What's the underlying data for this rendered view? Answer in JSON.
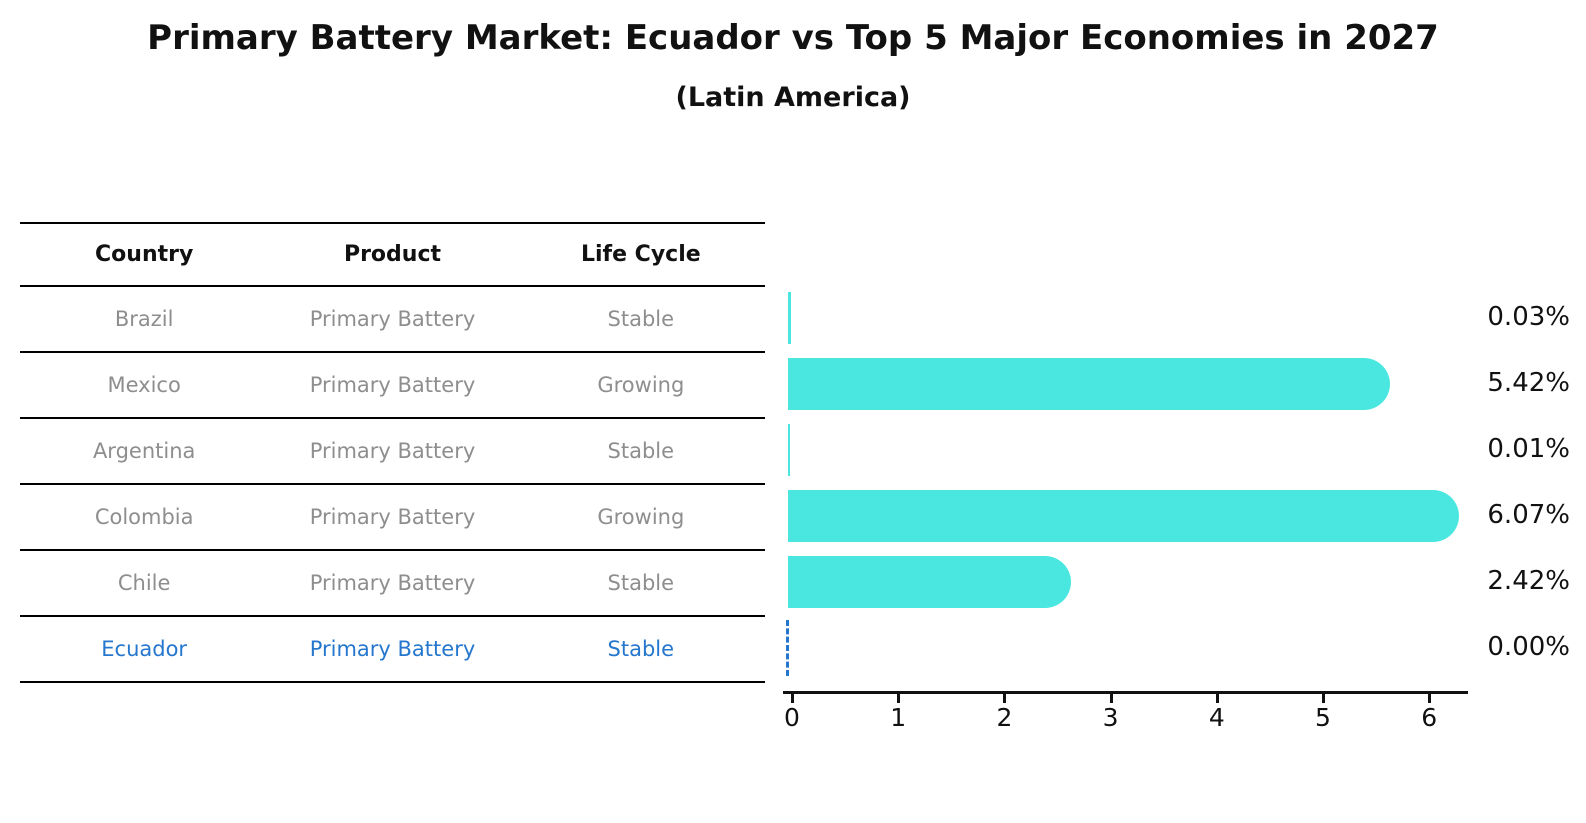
{
  "title": "Primary Battery Market: Ecuador vs Top 5 Major Economies in 2027",
  "subtitle": "(Latin America)",
  "table": {
    "headers": [
      "Country",
      "Product",
      "Life Cycle"
    ],
    "rows": [
      {
        "country": "Brazil",
        "product": "Primary Battery",
        "life_cycle": "Stable",
        "highlight": false
      },
      {
        "country": "Mexico",
        "product": "Primary Battery",
        "life_cycle": "Growing",
        "highlight": false
      },
      {
        "country": "Argentina",
        "product": "Primary Battery",
        "life_cycle": "Stable",
        "highlight": false
      },
      {
        "country": "Colombia",
        "product": "Primary Battery",
        "life_cycle": "Growing",
        "highlight": false
      },
      {
        "country": "Chile",
        "product": "Primary Battery",
        "life_cycle": "Stable",
        "highlight": false
      },
      {
        "country": "Ecuador",
        "product": "Primary Battery",
        "life_cycle": "Stable",
        "highlight": true
      }
    ]
  },
  "chart_data": {
    "type": "bar",
    "orientation": "horizontal",
    "title": "Primary Battery Market: Ecuador vs Top 5 Major Economies in 2027",
    "subtitle": "(Latin America)",
    "categories": [
      "Brazil",
      "Mexico",
      "Argentina",
      "Colombia",
      "Chile",
      "Ecuador"
    ],
    "values": [
      0.03,
      5.42,
      0.01,
      6.07,
      2.42,
      0.0
    ],
    "value_labels": [
      "0.03%",
      "5.42%",
      "0.01%",
      "6.07%",
      "2.42%",
      "0.00%"
    ],
    "x_ticks": [
      "0",
      "1",
      "2",
      "3",
      "4",
      "5",
      "6"
    ],
    "xlim": [
      0,
      6.4
    ],
    "xlabel": "",
    "ylabel": "",
    "grid": false,
    "legend": "none",
    "unit": "%",
    "bar_color": "#4AE7E1",
    "highlight_index": 5,
    "highlight_style": "dashed-outline",
    "highlight_color": "#2577CD"
  },
  "colors": {
    "background": "#ffffff",
    "bar": "#4AE7E1",
    "highlight_blue": "#2577CD",
    "table_text_gray": "#8E8E8E",
    "text_black": "#111111"
  }
}
